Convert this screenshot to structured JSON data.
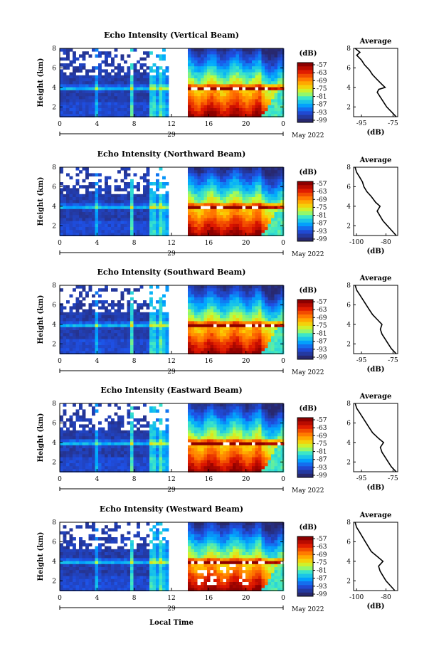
{
  "chart_data": [
    {
      "type": "heatmap",
      "title": "Echo Intensity (Vertical Beam)",
      "ylabel": "Height (km)",
      "y_ticks": [
        "2",
        "4",
        "6",
        "8"
      ],
      "x_ticks": [
        "0",
        "4",
        "8",
        "12",
        "16",
        "20",
        "0"
      ],
      "date_mid": "29",
      "date_right": "May 2022",
      "colorbar_label": "(dB)",
      "colorbar_ticks": [
        "-57",
        "-63",
        "-69",
        "-75",
        "-81",
        "-87",
        "-93",
        "-99"
      ],
      "avg": {
        "title": "Average",
        "xlabel": "(dB)",
        "x_ticks": [
          "-95",
          "-75"
        ],
        "xlim": [
          -100,
          -72
        ],
        "ylim": [
          1,
          8
        ],
        "y_ticks": [
          "2",
          "4",
          "6",
          "8"
        ],
        "profile": [
          [
            1.0,
            -73
          ],
          [
            1.5,
            -76
          ],
          [
            2.0,
            -79
          ],
          [
            2.5,
            -81
          ],
          [
            3.0,
            -83
          ],
          [
            3.5,
            -85
          ],
          [
            3.8,
            -84
          ],
          [
            4.0,
            -80
          ],
          [
            4.3,
            -82
          ],
          [
            4.8,
            -85
          ],
          [
            5.3,
            -88
          ],
          [
            5.8,
            -90
          ],
          [
            6.3,
            -93
          ],
          [
            6.8,
            -95
          ],
          [
            7.3,
            -98
          ],
          [
            7.6,
            -96
          ],
          [
            8.0,
            -99
          ]
        ]
      }
    },
    {
      "type": "heatmap",
      "title": "Echo Intensity (Northward Beam)",
      "ylabel": "Height (km)",
      "y_ticks": [
        "2",
        "4",
        "6",
        "8"
      ],
      "x_ticks": [
        "0",
        "4",
        "8",
        "12",
        "16",
        "20",
        "0"
      ],
      "date_mid": "29",
      "date_right": "May 2022",
      "colorbar_label": "(dB)",
      "colorbar_ticks": [
        "-57",
        "-63",
        "-69",
        "-75",
        "-81",
        "-87",
        "-93",
        "-99"
      ],
      "avg": {
        "title": "Average",
        "xlabel": "(dB)",
        "x_ticks": [
          "-100",
          "-80"
        ],
        "xlim": [
          -102,
          -72
        ],
        "ylim": [
          1,
          8
        ],
        "y_ticks": [
          "2",
          "4",
          "6",
          "8"
        ],
        "profile": [
          [
            1.0,
            -73
          ],
          [
            1.5,
            -76
          ],
          [
            2.0,
            -79
          ],
          [
            2.5,
            -82
          ],
          [
            3.0,
            -84
          ],
          [
            3.5,
            -86
          ],
          [
            4.0,
            -84
          ],
          [
            4.4,
            -87
          ],
          [
            5.0,
            -90
          ],
          [
            5.5,
            -93
          ],
          [
            6.0,
            -95
          ],
          [
            6.5,
            -96
          ],
          [
            7.0,
            -98
          ],
          [
            7.5,
            -100
          ],
          [
            8.0,
            -101
          ]
        ]
      }
    },
    {
      "type": "heatmap",
      "title": "Echo Intensity (Southward Beam)",
      "ylabel": "Height (km)",
      "y_ticks": [
        "2",
        "4",
        "6",
        "8"
      ],
      "x_ticks": [
        "0",
        "4",
        "8",
        "12",
        "16",
        "20",
        "0"
      ],
      "date_mid": "29",
      "date_right": "May 2022",
      "colorbar_label": "(dB)",
      "colorbar_ticks": [
        "-57",
        "-63",
        "-69",
        "-75",
        "-81",
        "-87",
        "-93",
        "-99"
      ],
      "avg": {
        "title": "Average",
        "xlabel": "(dB)",
        "x_ticks": [
          "-95",
          "-75"
        ],
        "xlim": [
          -100,
          -72
        ],
        "ylim": [
          1,
          8
        ],
        "y_ticks": [
          "2",
          "4",
          "6",
          "8"
        ],
        "profile": [
          [
            1.0,
            -73
          ],
          [
            1.5,
            -76
          ],
          [
            2.0,
            -78
          ],
          [
            2.5,
            -80
          ],
          [
            3.0,
            -82
          ],
          [
            3.5,
            -83
          ],
          [
            4.0,
            -82
          ],
          [
            4.5,
            -85
          ],
          [
            5.0,
            -88
          ],
          [
            5.5,
            -90
          ],
          [
            6.0,
            -92
          ],
          [
            6.5,
            -94
          ],
          [
            7.0,
            -96
          ],
          [
            7.5,
            -98
          ],
          [
            8.0,
            -99
          ]
        ]
      }
    },
    {
      "type": "heatmap",
      "title": "Echo Intensity (Eastward Beam)",
      "ylabel": "Height (km)",
      "y_ticks": [
        "2",
        "4",
        "6",
        "8"
      ],
      "x_ticks": [
        "0",
        "4",
        "8",
        "12",
        "16",
        "20",
        "0"
      ],
      "date_mid": "29",
      "date_right": "May 2022",
      "colorbar_label": "(dB)",
      "colorbar_ticks": [
        "-57",
        "-63",
        "-69",
        "-75",
        "-81",
        "-87",
        "-93",
        "-99"
      ],
      "avg": {
        "title": "Average",
        "xlabel": "(dB)",
        "x_ticks": [
          "-95",
          "-75"
        ],
        "xlim": [
          -100,
          -72
        ],
        "ylim": [
          1,
          8
        ],
        "y_ticks": [
          "2",
          "4",
          "6",
          "8"
        ],
        "profile": [
          [
            1.0,
            -73
          ],
          [
            1.5,
            -76
          ],
          [
            2.0,
            -78
          ],
          [
            2.5,
            -80
          ],
          [
            3.0,
            -82
          ],
          [
            3.5,
            -83
          ],
          [
            4.0,
            -81
          ],
          [
            4.4,
            -84
          ],
          [
            5.0,
            -88
          ],
          [
            5.5,
            -90
          ],
          [
            6.0,
            -92
          ],
          [
            6.5,
            -94
          ],
          [
            7.0,
            -96
          ],
          [
            7.5,
            -98
          ],
          [
            8.0,
            -99
          ]
        ]
      }
    },
    {
      "type": "heatmap",
      "title": "Echo Intensity (Westward Beam)",
      "ylabel": "Height (km)",
      "y_ticks": [
        "2",
        "4",
        "6",
        "8"
      ],
      "x_ticks": [
        "0",
        "4",
        "8",
        "12",
        "16",
        "20",
        "0"
      ],
      "date_mid": "29",
      "date_right": "May 2022",
      "colorbar_label": "(dB)",
      "colorbar_ticks": [
        "-57",
        "-63",
        "-69",
        "-75",
        "-81",
        "-87",
        "-93",
        "-99"
      ],
      "avg": {
        "title": "Average",
        "xlabel": "(dB)",
        "x_ticks": [
          "-100",
          "-80"
        ],
        "xlim": [
          -102,
          -72
        ],
        "ylim": [
          1,
          8
        ],
        "y_ticks": [
          "2",
          "4",
          "6",
          "8"
        ],
        "profile": [
          [
            1.0,
            -74
          ],
          [
            1.5,
            -77
          ],
          [
            2.0,
            -80
          ],
          [
            2.5,
            -82
          ],
          [
            3.0,
            -84
          ],
          [
            3.5,
            -85
          ],
          [
            4.0,
            -82
          ],
          [
            4.5,
            -86
          ],
          [
            5.0,
            -90
          ],
          [
            5.5,
            -92
          ],
          [
            6.0,
            -94
          ],
          [
            6.5,
            -96
          ],
          [
            7.0,
            -98
          ],
          [
            7.5,
            -100
          ],
          [
            8.0,
            -101
          ]
        ]
      }
    }
  ],
  "xlabel": "Local Time"
}
